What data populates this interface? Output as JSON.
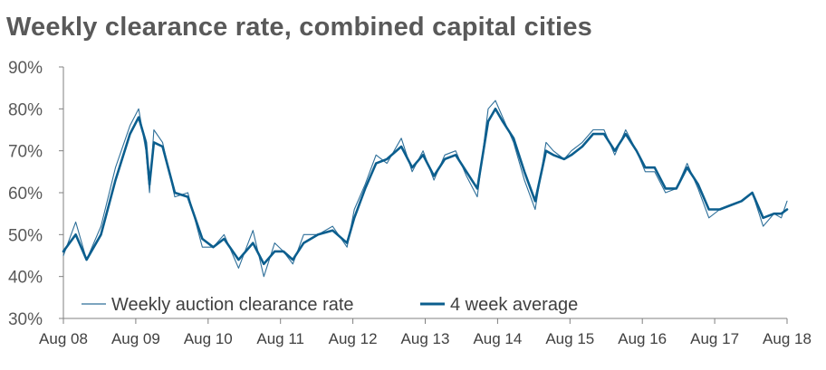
{
  "chart_data": {
    "type": "line",
    "title": "Weekly clearance rate, combined capital cities",
    "xlabel": "",
    "ylabel": "",
    "x_range": [
      "Aug 08",
      "Aug 18"
    ],
    "x_ticks": [
      "Aug 08",
      "Aug 09",
      "Aug 10",
      "Aug 11",
      "Aug 12",
      "Aug 13",
      "Aug 14",
      "Aug 15",
      "Aug 16",
      "Aug 17",
      "Aug 18"
    ],
    "y_ticks": [
      "30%",
      "40%",
      "50%",
      "60%",
      "70%",
      "80%",
      "90%"
    ],
    "ylim": [
      30,
      90
    ],
    "grid": false,
    "legend_position": "bottom-left",
    "colors": {
      "weekly": "#2e6f99",
      "average": "#0b5e8e",
      "title": "#595959",
      "axis": "#808080"
    },
    "series": [
      {
        "name": "Weekly auction clearance rate",
        "style": "thin",
        "x": [
          2008.58,
          2008.75,
          2008.9,
          2009.1,
          2009.3,
          2009.5,
          2009.62,
          2009.72,
          2009.77,
          2009.83,
          2009.95,
          2010.12,
          2010.3,
          2010.5,
          2010.65,
          2010.8,
          2011.0,
          2011.2,
          2011.35,
          2011.5,
          2011.62,
          2011.75,
          2011.9,
          2012.1,
          2012.3,
          2012.5,
          2012.6,
          2012.75,
          2012.9,
          2013.05,
          2013.25,
          2013.4,
          2013.55,
          2013.7,
          2013.85,
          2014.0,
          2014.15,
          2014.3,
          2014.45,
          2014.55,
          2014.65,
          2014.8,
          2014.95,
          2015.1,
          2015.25,
          2015.35,
          2015.5,
          2015.6,
          2015.75,
          2015.9,
          2016.05,
          2016.2,
          2016.35,
          2016.5,
          2016.62,
          2016.75,
          2016.9,
          2017.05,
          2017.2,
          2017.35,
          2017.5,
          2017.65,
          2017.8,
          2017.95,
          2018.1,
          2018.25,
          2018.4,
          2018.5,
          2018.58
        ],
        "y": [
          45,
          53,
          44,
          52,
          66,
          76,
          80,
          70,
          60,
          75,
          72,
          59,
          60,
          47,
          47,
          50,
          42,
          51,
          40,
          48,
          46,
          43,
          50,
          50,
          52,
          47,
          56,
          62,
          69,
          67,
          73,
          65,
          70,
          63,
          69,
          70,
          64,
          59,
          80,
          82,
          78,
          72,
          63,
          56,
          72,
          70,
          68,
          70,
          72,
          75,
          75,
          69,
          75,
          70,
          65,
          65,
          60,
          61,
          67,
          61,
          54,
          56,
          57,
          58,
          60,
          52,
          55,
          54,
          58
        ]
      },
      {
        "name": "4 week average",
        "style": "thick",
        "x": [
          2008.58,
          2008.75,
          2008.9,
          2009.1,
          2009.3,
          2009.5,
          2009.62,
          2009.72,
          2009.77,
          2009.83,
          2009.95,
          2010.12,
          2010.3,
          2010.5,
          2010.65,
          2010.8,
          2011.0,
          2011.2,
          2011.35,
          2011.5,
          2011.62,
          2011.75,
          2011.9,
          2012.1,
          2012.3,
          2012.5,
          2012.6,
          2012.75,
          2012.9,
          2013.05,
          2013.25,
          2013.4,
          2013.55,
          2013.7,
          2013.85,
          2014.0,
          2014.15,
          2014.3,
          2014.45,
          2014.55,
          2014.65,
          2014.8,
          2014.95,
          2015.1,
          2015.25,
          2015.35,
          2015.5,
          2015.6,
          2015.75,
          2015.9,
          2016.05,
          2016.2,
          2016.35,
          2016.5,
          2016.62,
          2016.75,
          2016.9,
          2017.05,
          2017.2,
          2017.35,
          2017.5,
          2017.65,
          2017.8,
          2017.95,
          2018.1,
          2018.25,
          2018.4,
          2018.5,
          2018.58
        ],
        "y": [
          46,
          50,
          44,
          50,
          63,
          74,
          78,
          72,
          62,
          72,
          71,
          60,
          59,
          49,
          47,
          49,
          44,
          48,
          43,
          46,
          46,
          44,
          48,
          50,
          51,
          48,
          54,
          61,
          67,
          68,
          71,
          66,
          69,
          64,
          68,
          69,
          65,
          61,
          77,
          80,
          77,
          73,
          65,
          58,
          70,
          69,
          68,
          69,
          71,
          74,
          74,
          70,
          74,
          70,
          66,
          66,
          61,
          61,
          66,
          62,
          56,
          56,
          57,
          58,
          60,
          54,
          55,
          55,
          56
        ]
      }
    ]
  }
}
